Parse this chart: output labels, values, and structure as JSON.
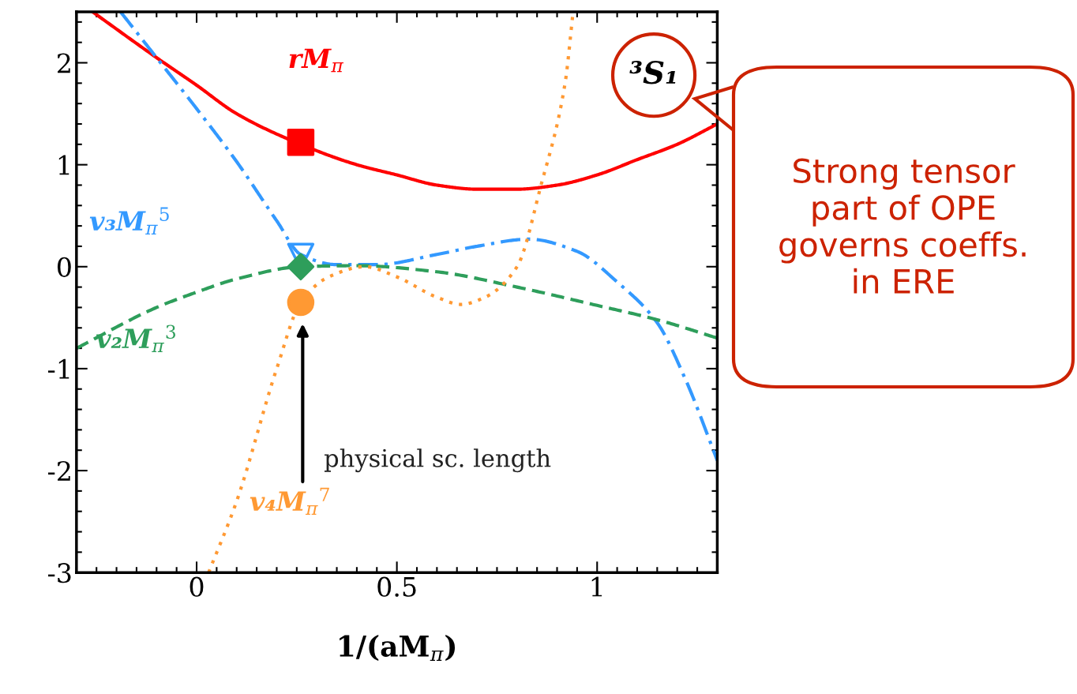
{
  "chart_data": {
    "type": "line",
    "xlabel": "1/(aM$_{π}$)",
    "xlim": [
      -0.3,
      1.3
    ],
    "ylim": [
      -3,
      2.5
    ],
    "xticks": [
      0,
      0.5,
      1
    ],
    "yticks": [
      {
        "value": -3,
        "label": "-3"
      },
      {
        "value": -2,
        "label": "-2"
      },
      {
        "value": -1,
        "label": "-1"
      },
      0,
      1,
      2
    ],
    "grid": false,
    "legend": false,
    "series": [
      {
        "name": "rM$_{π}$",
        "color": "#ff0000",
        "line_style": "solid",
        "x": [
          -0.26,
          -0.1,
          0,
          0.1,
          0.26,
          0.4,
          0.5,
          0.6,
          0.7,
          0.8,
          0.9,
          1.0,
          1.1,
          1.2,
          1.3
        ],
        "values": [
          2.5,
          2.05,
          1.78,
          1.5,
          1.2,
          1.0,
          0.9,
          0.8,
          0.76,
          0.76,
          0.8,
          0.9,
          1.05,
          1.2,
          1.4
        ]
      },
      {
        "name": "v₃M$_{π}$$^{5}$",
        "color": "#3399ff",
        "line_style": "dashdot",
        "x": [
          -0.19,
          -0.1,
          0,
          0.1,
          0.2,
          0.26,
          0.35,
          0.45,
          0.6,
          0.7,
          0.83,
          0.95,
          1.05,
          1.15,
          1.22,
          1.3
        ],
        "values": [
          2.5,
          2.05,
          1.55,
          1.03,
          0.45,
          0.12,
          0.02,
          0.02,
          0.12,
          0.2,
          0.27,
          0.15,
          -0.15,
          -0.55,
          -1.1,
          -1.9
        ]
      },
      {
        "name": "v₂M$_{π}$$^{3}$",
        "color": "#2e9e5b",
        "line_style": "dashed",
        "x": [
          -0.3,
          -0.1,
          0,
          0.1,
          0.26,
          0.4,
          0.6,
          0.8,
          1.0,
          1.15,
          1.3
        ],
        "values": [
          -0.8,
          -0.4,
          -0.25,
          -0.12,
          0,
          0.01,
          -0.05,
          -0.2,
          -0.38,
          -0.52,
          -0.7
        ]
      },
      {
        "name": "v₄M$_{π}$$^{7}$",
        "color": "#ff9933",
        "line_style": "dotted",
        "x": [
          0.03,
          0.1,
          0.2,
          0.26,
          0.33,
          0.42,
          0.5,
          0.6,
          0.66,
          0.72,
          0.8,
          0.86,
          0.92,
          0.94
        ],
        "values": [
          -3,
          -2.3,
          -1.0,
          -0.35,
          -0.1,
          0.0,
          -0.1,
          -0.3,
          -0.37,
          -0.3,
          0.0,
          0.8,
          1.8,
          2.5
        ]
      },
      {
        "type": "scatter",
        "marker": "square",
        "color": "#ff0000",
        "x": [
          0.26
        ],
        "values": [
          1.22
        ]
      },
      {
        "type": "scatter",
        "marker": "triangle",
        "color": "#3399ff",
        "x": [
          0.26
        ],
        "values": [
          0.1
        ]
      },
      {
        "type": "scatter",
        "marker": "diamond",
        "color": "#2e9e5b",
        "x": [
          0.26
        ],
        "values": [
          0.0
        ]
      },
      {
        "type": "scatter",
        "marker": "circle",
        "color": "#ff9933",
        "x": [
          0.26
        ],
        "values": [
          -0.35
        ]
      }
    ],
    "annotations": [
      "physical sc. length",
      "³S₁",
      "Strong tensor part of OPE governs coeffs. in ERE"
    ]
  }
}
